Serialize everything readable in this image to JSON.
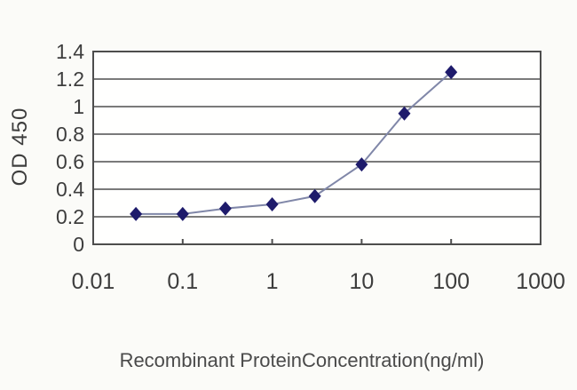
{
  "chart_data": {
    "type": "line",
    "title": "",
    "xlabel": "Recombinant ProteinConcentration(ng/ml)",
    "ylabel": "OD 450",
    "x_scale": "log",
    "xlim": [
      0.01,
      1000
    ],
    "ylim": [
      0,
      1.4
    ],
    "x_ticks": [
      0.01,
      0.1,
      1,
      10,
      100,
      1000
    ],
    "x_tick_labels": [
      "0.01",
      "0.1",
      "1",
      "10",
      "100",
      "1000"
    ],
    "y_ticks": [
      0,
      0.2,
      0.4,
      0.6,
      0.8,
      1,
      1.2,
      1.4
    ],
    "y_tick_labels": [
      "0",
      "0.2",
      "0.4",
      "0.6",
      "0.8",
      "1",
      "1.2",
      "1.4"
    ],
    "grid": "horizontal",
    "legend": "none",
    "series": [
      {
        "name": "OD 450",
        "marker": "diamond",
        "x": [
          0.03,
          0.1,
          0.3,
          1,
          3,
          10,
          30,
          100
        ],
        "y": [
          0.22,
          0.22,
          0.26,
          0.29,
          0.35,
          0.58,
          0.95,
          1.25
        ]
      }
    ]
  },
  "colors": {
    "marker": "#1e1b6b",
    "line": "#8087a8",
    "grid": "#7a7a7a",
    "axis": "#4d4d4d",
    "text": "#3d3d3d",
    "plot_bg": "#fffffe",
    "page_bg": "#fbfbf8"
  }
}
